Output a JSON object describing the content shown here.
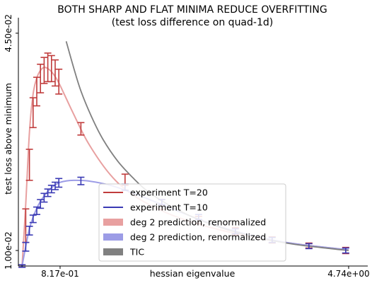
{
  "chart_data": {
    "type": "line",
    "title": "BOTH SHARP AND FLAT MINIMA REDUCE OVERFITTING",
    "subtitle": "(test loss difference on quad-1d)",
    "xlabel": "hessian eigenvalue",
    "ylabel": "test loss above minimum",
    "xlim": [
      0.25,
      5.0
    ],
    "ylim": [
      0.0075,
      0.0475
    ],
    "x_tick_values": [
      0.817,
      4.74
    ],
    "x_tick_labels": [
      "8.17e-01",
      "4.74e+00"
    ],
    "y_tick_values": [
      0.01,
      0.045
    ],
    "y_tick_labels": [
      "1.00e-02",
      "4.50e-02"
    ],
    "grid": false,
    "legend_position": "lower-center",
    "series": [
      {
        "name": "experiment T=20",
        "kind": "errorbar",
        "color": "#c03c3c",
        "points": [
          {
            "x": 0.3,
            "y": 0.0075,
            "err": 0.0002
          },
          {
            "x": 0.35,
            "y": 0.014,
            "err": 0.0027
          },
          {
            "x": 0.4,
            "y": 0.0238,
            "err": 0.0025
          },
          {
            "x": 0.45,
            "y": 0.0322,
            "err": 0.0024
          },
          {
            "x": 0.5,
            "y": 0.0356,
            "err": 0.0023
          },
          {
            "x": 0.55,
            "y": 0.0377,
            "err": 0.0023
          },
          {
            "x": 0.6,
            "y": 0.039,
            "err": 0.0021
          },
          {
            "x": 0.65,
            "y": 0.0395,
            "err": 0.0023
          },
          {
            "x": 0.7,
            "y": 0.0393,
            "err": 0.0021
          },
          {
            "x": 0.75,
            "y": 0.0386,
            "err": 0.0021
          },
          {
            "x": 0.8,
            "y": 0.0372,
            "err": 0.002
          },
          {
            "x": 1.1,
            "y": 0.0296,
            "err": 0.001
          },
          {
            "x": 1.7,
            "y": 0.0214,
            "err": 0.0009
          },
          {
            "x": 2.2,
            "y": 0.0174,
            "err": 0.0008
          },
          {
            "x": 2.7,
            "y": 0.0149,
            "err": 0.0006
          },
          {
            "x": 3.2,
            "y": 0.0131,
            "err": 0.0006
          },
          {
            "x": 3.7,
            "y": 0.0117,
            "err": 0.0005
          },
          {
            "x": 4.2,
            "y": 0.0108,
            "err": 0.0004
          },
          {
            "x": 4.7,
            "y": 0.01,
            "err": 0.0005
          }
        ]
      },
      {
        "name": "experiment T=10",
        "kind": "errorbar",
        "color": "#3a3ab4",
        "points": [
          {
            "x": 0.3,
            "y": 0.0075,
            "err": 0.0002
          },
          {
            "x": 0.35,
            "y": 0.0106,
            "err": 0.0007
          },
          {
            "x": 0.4,
            "y": 0.0132,
            "err": 0.0007
          },
          {
            "x": 0.45,
            "y": 0.0151,
            "err": 0.0006
          },
          {
            "x": 0.5,
            "y": 0.0164,
            "err": 0.0006
          },
          {
            "x": 0.55,
            "y": 0.0175,
            "err": 0.0007
          },
          {
            "x": 0.6,
            "y": 0.0185,
            "err": 0.0007
          },
          {
            "x": 0.65,
            "y": 0.0193,
            "err": 0.0006
          },
          {
            "x": 0.7,
            "y": 0.0199,
            "err": 0.0006
          },
          {
            "x": 0.75,
            "y": 0.0204,
            "err": 0.0006
          },
          {
            "x": 0.8,
            "y": 0.0209,
            "err": 0.0007
          },
          {
            "x": 1.1,
            "y": 0.0212,
            "err": 0.0006
          },
          {
            "x": 1.7,
            "y": 0.0202,
            "err": 0.0005
          },
          {
            "x": 2.2,
            "y": 0.0178,
            "err": 0.0004
          },
          {
            "x": 2.7,
            "y": 0.0154,
            "err": 0.0004
          },
          {
            "x": 3.2,
            "y": 0.0131,
            "err": 0.0004
          },
          {
            "x": 3.7,
            "y": 0.0117,
            "err": 0.0004
          },
          {
            "x": 4.2,
            "y": 0.0107,
            "err": 0.0004
          },
          {
            "x": 4.7,
            "y": 0.01,
            "err": 0.0004
          }
        ]
      },
      {
        "name": "deg 2 prediction, renormalized",
        "kind": "line",
        "color": "#e8a0a0",
        "x": [
          0.3,
          0.35,
          0.4,
          0.45,
          0.5,
          0.55,
          0.6,
          0.65,
          0.7,
          0.75,
          0.8,
          0.9,
          1.0,
          1.2,
          1.5,
          1.8,
          2.2,
          2.6,
          3.0,
          3.5,
          4.0,
          4.5,
          4.74
        ],
        "y": [
          0.0075,
          0.0175,
          0.029,
          0.0352,
          0.0378,
          0.039,
          0.0395,
          0.0393,
          0.0388,
          0.038,
          0.037,
          0.0345,
          0.032,
          0.0273,
          0.0222,
          0.019,
          0.0164,
          0.0146,
          0.0133,
          0.012,
          0.0111,
          0.0104,
          0.0101
        ]
      },
      {
        "name": "deg 2 prediction, renormalized",
        "kind": "line",
        "color": "#9c9ce6",
        "x": [
          0.3,
          0.4,
          0.5,
          0.6,
          0.7,
          0.8,
          0.9,
          1.0,
          1.2,
          1.5,
          1.8,
          2.2,
          2.6,
          3.0,
          3.5,
          4.0,
          4.5,
          4.74
        ],
        "y": [
          0.0075,
          0.0135,
          0.0168,
          0.0188,
          0.0201,
          0.0209,
          0.0212,
          0.0213,
          0.0212,
          0.0205,
          0.0193,
          0.0174,
          0.0155,
          0.0138,
          0.0122,
          0.0111,
          0.0104,
          0.0101
        ]
      },
      {
        "name": "TIC",
        "kind": "line",
        "color": "#808080",
        "x": [
          0.9,
          1.0,
          1.1,
          1.25,
          1.4,
          1.6,
          1.8,
          2.0,
          2.3,
          2.6,
          3.0,
          3.5,
          4.0,
          4.5,
          4.74
        ],
        "y": [
          0.0437,
          0.0395,
          0.0357,
          0.0314,
          0.0279,
          0.0244,
          0.0218,
          0.0196,
          0.0173,
          0.0155,
          0.0137,
          0.0121,
          0.011,
          0.0103,
          0.01
        ]
      }
    ]
  }
}
